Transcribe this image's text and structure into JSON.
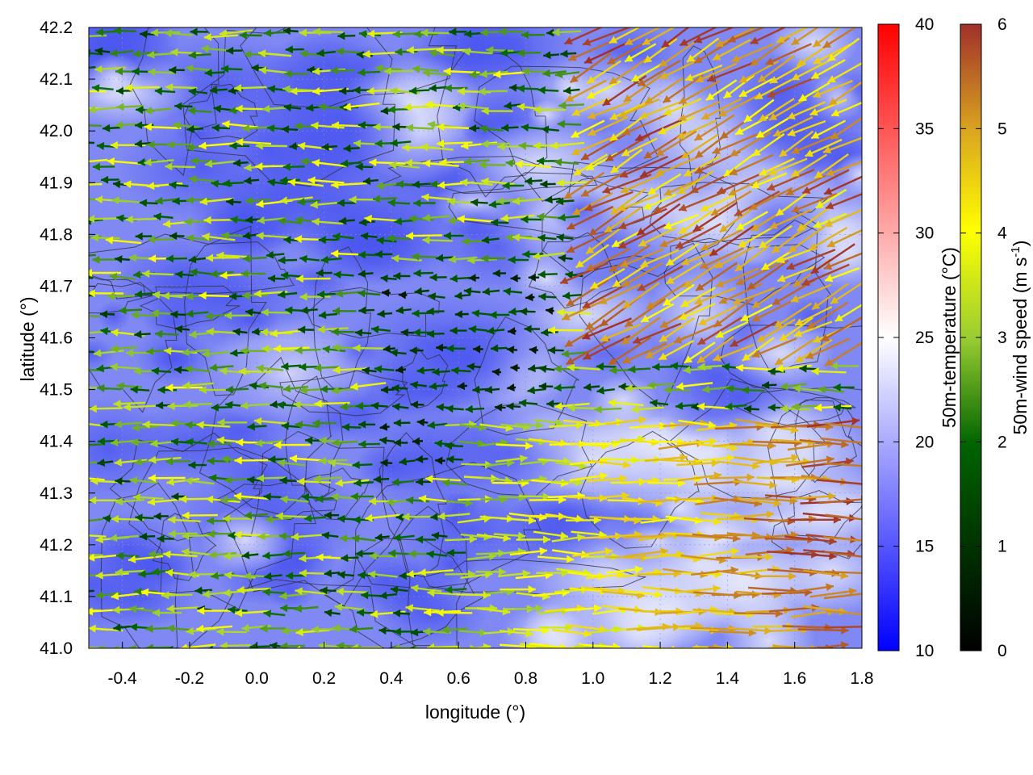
{
  "chart_data": {
    "type": "heatmap",
    "subtype": "wind vector field over temperature map with contour lines",
    "xlabel": "longitude (°)",
    "ylabel": "latitude (°)",
    "xlim": [
      -0.5,
      1.8
    ],
    "ylim": [
      41.0,
      42.2
    ],
    "x_ticks": [
      "-0.4",
      "-0.2",
      "0.0",
      "0.2",
      "0.4",
      "0.6",
      "0.8",
      "1.0",
      "1.2",
      "1.4",
      "1.6",
      "1.8"
    ],
    "x_tick_values": [
      -0.4,
      -0.2,
      0.0,
      0.2,
      0.4,
      0.6,
      0.8,
      1.0,
      1.2,
      1.4,
      1.6,
      1.8
    ],
    "y_ticks": [
      "41.0",
      "41.1",
      "41.2",
      "41.3",
      "41.4",
      "41.5",
      "41.6",
      "41.7",
      "41.8",
      "41.9",
      "42.0",
      "42.1",
      "42.2"
    ],
    "y_tick_values": [
      41.0,
      41.1,
      41.2,
      41.3,
      41.4,
      41.5,
      41.6,
      41.7,
      41.8,
      41.9,
      42.0,
      42.1,
      42.2
    ],
    "grid": true,
    "temperature_colorbar": {
      "label": "50m-temperature (°C)",
      "range": [
        10,
        40
      ],
      "ticks": [
        "10",
        "15",
        "20",
        "25",
        "30",
        "35",
        "40"
      ],
      "tick_values": [
        10,
        15,
        20,
        25,
        30,
        35,
        40
      ],
      "colors": [
        "#0000ff",
        "#ffffff",
        "#ff0000"
      ]
    },
    "wind_colorbar": {
      "label_main": "50m-wind speed (m s",
      "label_sup": "-1",
      "label_end": ")",
      "range": [
        0,
        6
      ],
      "ticks": [
        "0",
        "1",
        "2",
        "3",
        "4",
        "5",
        "6"
      ],
      "tick_values": [
        0,
        1,
        2,
        3,
        4,
        5,
        6
      ],
      "colors": [
        "#000000",
        "#006400",
        "#9acd32",
        "#ffff00",
        "#daa520",
        "#a0302a"
      ]
    },
    "temperature_field_approx": {
      "west_and_central": 16,
      "east_and_southeast": 20
    },
    "wind_regimes_approx": [
      {
        "region": "west, 41.0-42.2",
        "direction": "westward",
        "speed": [
          1,
          3
        ]
      },
      {
        "region": "north-east, 41.6-42.2",
        "direction": "south-westward",
        "speed": [
          4,
          6
        ]
      },
      {
        "region": "south-east, 41.0-41.45",
        "direction": "eastward",
        "speed": [
          3,
          6
        ]
      }
    ]
  }
}
